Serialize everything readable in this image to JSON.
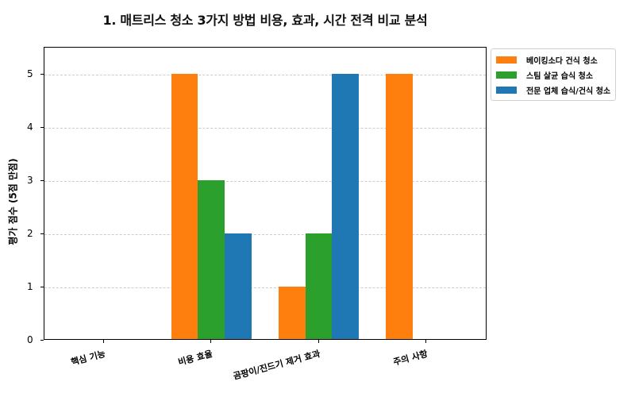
{
  "chart_data": {
    "type": "bar",
    "title": "1. 매트리스 청소 3가지 방법 비용, 효과, 시간 전격 비교 분석",
    "xlabel": "",
    "ylabel": "평가 점수 (5점 만점)",
    "ylim": [
      0,
      5.5
    ],
    "yticks": [
      0,
      1,
      2,
      3,
      4,
      5
    ],
    "grid": "y dashed",
    "legend_position": "outside upper right",
    "categories": [
      "핵심 기능",
      "비용 효율",
      "곰팡이/진드기 제거 효과",
      "주의 사항"
    ],
    "series": [
      {
        "name": "베이킹소다 건식 청소",
        "color": "#ff7f0e",
        "values": [
          0,
          5,
          1,
          5
        ]
      },
      {
        "name": "스팀 살균 습식 청소",
        "color": "#2ca02c",
        "values": [
          0,
          3,
          2,
          0
        ]
      },
      {
        "name": "전문 업체 습식/건식 청소",
        "color": "#1f77b4",
        "values": [
          0,
          2,
          5,
          0
        ]
      }
    ]
  }
}
